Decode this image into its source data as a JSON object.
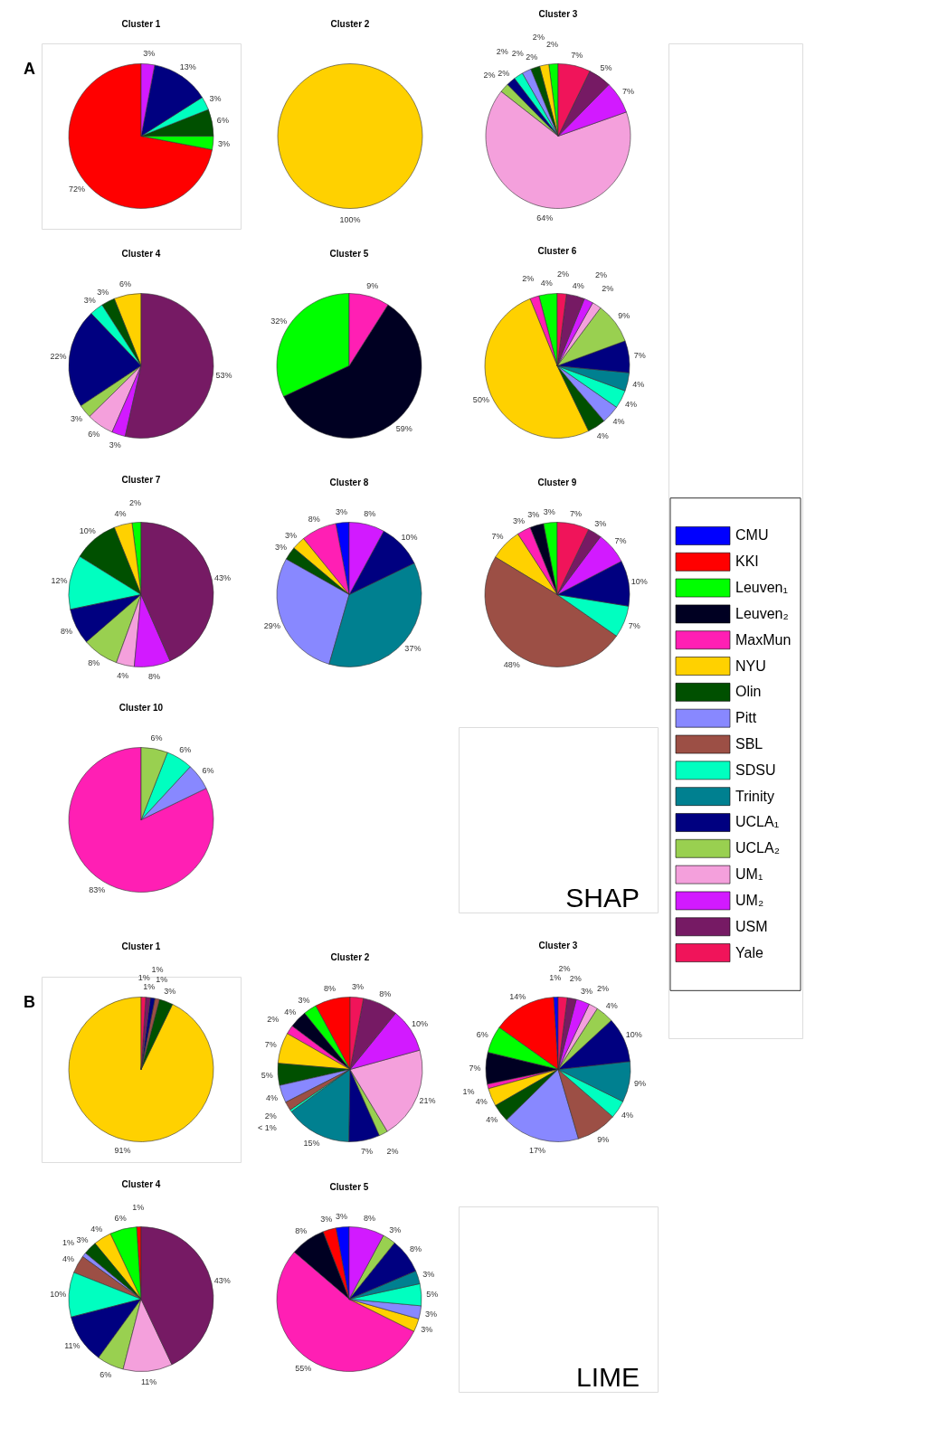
{
  "chart_data": [
    {
      "type": "pie",
      "title": "Cluster 1",
      "annotations": [
        "A",
        "SHAP"
      ],
      "categories": [
        null,
        null,
        null,
        null,
        null,
        null,
        null,
        null,
        null,
        null,
        null,
        null,
        null,
        null,
        null,
        null,
        null
      ],
      "colors": [
        "#0000ff",
        "#ff0000",
        "#00ff00",
        "#000022",
        "#ff1fb4",
        "#ffd100",
        "#005000",
        "#8888ff",
        "#9c4f45",
        "#00ffc0",
        "#008090",
        "#000080",
        "#99d050",
        "#f4a0dc",
        "#d21aff",
        "#761a64",
        "#f0145a"
      ],
      "values": [
        null,
        72,
        3,
        null,
        null,
        null,
        6,
        null,
        null,
        3,
        null,
        13,
        null,
        null,
        3,
        null,
        null
      ],
      "value_labels": [
        null,
        "72%",
        "3%",
        null,
        null,
        null,
        "6%",
        null,
        null,
        "3%",
        null,
        "13%",
        null,
        null,
        "3%",
        null,
        null
      ]
    },
    {
      "type": "pie",
      "title": "Cluster 2",
      "categories": [
        null,
        null,
        null,
        null,
        null,
        null,
        null,
        null,
        null,
        null,
        null,
        null,
        null,
        null,
        null,
        null,
        null
      ],
      "colors": [
        "#0000ff",
        "#ff0000",
        "#00ff00",
        "#000022",
        "#ff1fb4",
        "#ffd100",
        "#005000",
        "#8888ff",
        "#9c4f45",
        "#00ffc0",
        "#008090",
        "#000080",
        "#99d050",
        "#f4a0dc",
        "#d21aff",
        "#761a64",
        "#f0145a"
      ],
      "values": [
        null,
        null,
        null,
        null,
        null,
        100,
        null,
        null,
        null,
        null,
        null,
        null,
        null,
        null,
        null,
        null,
        null
      ],
      "value_labels": [
        null,
        null,
        null,
        null,
        null,
        "100%",
        null,
        null,
        null,
        null,
        null,
        null,
        null,
        null,
        null,
        null,
        null
      ]
    },
    {
      "type": "pie",
      "title": "Cluster 3",
      "categories": [
        null,
        null,
        null,
        null,
        null,
        null,
        null,
        null,
        null,
        null,
        null,
        null,
        null,
        null,
        null,
        null,
        null
      ],
      "colors": [
        "#0000ff",
        "#ff0000",
        "#00ff00",
        "#000022",
        "#ff1fb4",
        "#ffd100",
        "#005000",
        "#8888ff",
        "#9c4f45",
        "#00ffc0",
        "#008090",
        "#000080",
        "#99d050",
        "#f4a0dc",
        "#d21aff",
        "#761a64",
        "#f0145a"
      ],
      "values": [
        null,
        null,
        2,
        null,
        null,
        2,
        2,
        2,
        null,
        2,
        null,
        2,
        2,
        64,
        7,
        5,
        7
      ],
      "value_labels": [
        null,
        null,
        "2%",
        null,
        null,
        "2%",
        "2%",
        "2%",
        null,
        "2%",
        null,
        "2%",
        "2%",
        "64%",
        "7%",
        "5%",
        "7%"
      ]
    },
    {
      "type": "pie",
      "title": "Cluster 4",
      "categories": [
        null,
        null,
        null,
        null,
        null,
        null,
        null,
        null,
        null,
        null,
        null,
        null,
        null,
        null,
        null,
        null,
        null
      ],
      "colors": [
        "#0000ff",
        "#ff0000",
        "#00ff00",
        "#000022",
        "#ff1fb4",
        "#ffd100",
        "#005000",
        "#8888ff",
        "#9c4f45",
        "#00ffc0",
        "#008090",
        "#000080",
        "#99d050",
        "#f4a0dc",
        "#d21aff",
        "#761a64",
        "#f0145a"
      ],
      "values": [
        null,
        null,
        null,
        null,
        null,
        6,
        3,
        null,
        null,
        3,
        null,
        22,
        3,
        6,
        3,
        53,
        null
      ],
      "value_labels": [
        null,
        null,
        null,
        null,
        null,
        "6%",
        "3%",
        null,
        null,
        "3%",
        null,
        "22%",
        "3%",
        "6%",
        "3%",
        "53%",
        null
      ]
    },
    {
      "type": "pie",
      "title": "Cluster 5",
      "categories": [
        null,
        null,
        null,
        null,
        null,
        null,
        null,
        null,
        null,
        null,
        null,
        null,
        null,
        null,
        null,
        null,
        null
      ],
      "colors": [
        "#0000ff",
        "#ff0000",
        "#00ff00",
        "#000022",
        "#ff1fb4",
        "#ffd100",
        "#005000",
        "#8888ff",
        "#9c4f45",
        "#00ffc0",
        "#008090",
        "#000080",
        "#99d050",
        "#f4a0dc",
        "#d21aff",
        "#761a64",
        "#f0145a"
      ],
      "values": [
        null,
        null,
        32,
        59,
        9,
        null,
        null,
        null,
        null,
        null,
        null,
        null,
        null,
        null,
        null,
        null,
        null
      ],
      "value_labels": [
        null,
        null,
        "32%",
        "59%",
        "9%",
        null,
        null,
        null,
        null,
        null,
        null,
        null,
        null,
        null,
        null,
        null,
        null
      ]
    },
    {
      "type": "pie",
      "title": "Cluster 6",
      "categories": [
        null,
        null,
        null,
        null,
        null,
        null,
        null,
        null,
        null,
        null,
        null,
        null,
        null,
        null,
        null,
        null,
        null
      ],
      "colors": [
        "#0000ff",
        "#ff0000",
        "#00ff00",
        "#000022",
        "#ff1fb4",
        "#ffd100",
        "#005000",
        "#8888ff",
        "#9c4f45",
        "#00ffc0",
        "#008090",
        "#000080",
        "#99d050",
        "#f4a0dc",
        "#d21aff",
        "#761a64",
        "#f0145a"
      ],
      "values": [
        null,
        null,
        4,
        null,
        2,
        50,
        4,
        4,
        null,
        4,
        4,
        7,
        9,
        2,
        2,
        4,
        2
      ],
      "value_labels": [
        null,
        null,
        "4%",
        null,
        "2%",
        "50%",
        "4%",
        "4%",
        null,
        "4%",
        "4%",
        "7%",
        "9%",
        "2%",
        "2%",
        "4%",
        "2%"
      ]
    },
    {
      "type": "pie",
      "title": "Cluster 7",
      "categories": [
        null,
        null,
        null,
        null,
        null,
        null,
        null,
        null,
        null,
        null,
        null,
        null,
        null,
        null,
        null,
        null,
        null
      ],
      "colors": [
        "#0000ff",
        "#ff0000",
        "#00ff00",
        "#000022",
        "#ff1fb4",
        "#ffd100",
        "#005000",
        "#8888ff",
        "#9c4f45",
        "#00ffc0",
        "#008090",
        "#000080",
        "#99d050",
        "#f4a0dc",
        "#d21aff",
        "#761a64",
        "#f0145a"
      ],
      "values": [
        null,
        null,
        2,
        null,
        null,
        4,
        10,
        null,
        null,
        12,
        null,
        8,
        8,
        4,
        8,
        43,
        null
      ],
      "value_labels": [
        null,
        null,
        "2%",
        null,
        null,
        "4%",
        "10%",
        null,
        null,
        "12%",
        null,
        "8%",
        "8%",
        "4%",
        "8%",
        "43%",
        null
      ]
    },
    {
      "type": "pie",
      "title": "Cluster 8",
      "categories": [
        null,
        null,
        null,
        null,
        null,
        null,
        null,
        null,
        null,
        null,
        null,
        null,
        null,
        null,
        null,
        null,
        null
      ],
      "colors": [
        "#0000ff",
        "#ff0000",
        "#00ff00",
        "#000022",
        "#ff1fb4",
        "#ffd100",
        "#005000",
        "#8888ff",
        "#9c4f45",
        "#00ffc0",
        "#008090",
        "#000080",
        "#99d050",
        "#f4a0dc",
        "#d21aff",
        "#761a64",
        "#f0145a"
      ],
      "values": [
        3,
        null,
        null,
        null,
        8,
        3,
        3,
        29,
        null,
        null,
        37,
        10,
        null,
        null,
        8,
        null,
        null
      ],
      "value_labels": [
        "3%",
        null,
        null,
        null,
        "8%",
        "3%",
        "3%",
        "29%",
        null,
        null,
        "37%",
        "10%",
        null,
        null,
        "8%",
        null,
        null
      ]
    },
    {
      "type": "pie",
      "title": "Cluster 9",
      "categories": [
        null,
        null,
        null,
        null,
        null,
        null,
        null,
        null,
        null,
        null,
        null,
        null,
        null,
        null,
        null,
        null,
        null
      ],
      "colors": [
        "#0000ff",
        "#ff0000",
        "#00ff00",
        "#000022",
        "#ff1fb4",
        "#ffd100",
        "#005000",
        "#8888ff",
        "#9c4f45",
        "#00ffc0",
        "#008090",
        "#000080",
        "#99d050",
        "#f4a0dc",
        "#d21aff",
        "#761a64",
        "#f0145a"
      ],
      "values": [
        null,
        null,
        3,
        3,
        3,
        7,
        null,
        null,
        48,
        7,
        null,
        10,
        null,
        null,
        7,
        3,
        7
      ],
      "value_labels": [
        null,
        null,
        "3%",
        "3%",
        "3%",
        "7%",
        null,
        null,
        "48%",
        "7%",
        null,
        "10%",
        null,
        null,
        "7%",
        "3%",
        "7%"
      ]
    },
    {
      "type": "pie",
      "title": "Cluster 10",
      "categories": [
        null,
        null,
        null,
        null,
        null,
        null,
        null,
        null,
        null,
        null,
        null,
        null,
        null,
        null,
        null,
        null,
        null
      ],
      "colors": [
        "#0000ff",
        "#ff0000",
        "#00ff00",
        "#000022",
        "#ff1fb4",
        "#ffd100",
        "#005000",
        "#8888ff",
        "#9c4f45",
        "#00ffc0",
        "#008090",
        "#000080",
        "#99d050",
        "#f4a0dc",
        "#d21aff",
        "#761a64",
        "#f0145a"
      ],
      "values": [
        null,
        null,
        null,
        null,
        83,
        null,
        null,
        6,
        null,
        6,
        null,
        null,
        6,
        null,
        null,
        null,
        null
      ],
      "value_labels": [
        null,
        null,
        null,
        null,
        "83%",
        null,
        null,
        "6%",
        null,
        "6%",
        null,
        null,
        "6%",
        null,
        null,
        null,
        null
      ]
    },
    {
      "type": "pie",
      "title": "Cluster 1",
      "annotations": [
        "B",
        "LIME"
      ],
      "categories": [
        null,
        null,
        null,
        null,
        null,
        null,
        null,
        null,
        null,
        null,
        null,
        null,
        null,
        null,
        null,
        null,
        null
      ],
      "colors": [
        "#0000ff",
        "#ff0000",
        "#00ff00",
        "#000022",
        "#ff1fb4",
        "#ffd100",
        "#005000",
        "#8888ff",
        "#9c4f45",
        "#00ffc0",
        "#008090",
        "#000080",
        "#99d050",
        "#f4a0dc",
        "#d21aff",
        "#761a64",
        "#f0145a"
      ],
      "values": [
        null,
        null,
        null,
        null,
        null,
        91,
        3,
        null,
        1,
        null,
        null,
        1,
        null,
        null,
        null,
        1,
        1
      ],
      "value_labels": [
        null,
        null,
        null,
        null,
        null,
        "91%",
        "3%",
        null,
        "1%",
        null,
        null,
        "1%",
        null,
        null,
        null,
        "1%",
        "1%"
      ]
    },
    {
      "type": "pie",
      "title": "Cluster 2",
      "categories": [
        null,
        null,
        null,
        null,
        null,
        null,
        null,
        null,
        null,
        null,
        null,
        null,
        null,
        null,
        null,
        null,
        null
      ],
      "colors": [
        "#0000ff",
        "#ff0000",
        "#00ff00",
        "#000022",
        "#ff1fb4",
        "#ffd100",
        "#005000",
        "#8888ff",
        "#9c4f45",
        "#00ffc0",
        "#008090",
        "#000080",
        "#99d050",
        "#f4a0dc",
        "#d21aff",
        "#761a64",
        "#f0145a"
      ],
      "values": [
        null,
        8,
        3,
        4,
        2,
        7,
        5,
        4,
        2,
        0.5,
        15,
        7,
        2,
        21,
        10,
        8,
        3
      ],
      "value_labels": [
        null,
        "8%",
        "3%",
        "4%",
        "2%",
        "7%",
        "5%",
        "4%",
        "2%",
        "< 1%",
        "15%",
        "7%",
        "2%",
        "21%",
        "10%",
        "8%",
        "3%"
      ]
    },
    {
      "type": "pie",
      "title": "Cluster 3",
      "categories": [
        null,
        null,
        null,
        null,
        null,
        null,
        null,
        null,
        null,
        null,
        null,
        null,
        null,
        null,
        null,
        null,
        null
      ],
      "colors": [
        "#0000ff",
        "#ff0000",
        "#00ff00",
        "#000022",
        "#ff1fb4",
        "#ffd100",
        "#005000",
        "#8888ff",
        "#9c4f45",
        "#00ffc0",
        "#008090",
        "#000080",
        "#99d050",
        "#f4a0dc",
        "#d21aff",
        "#761a64",
        "#f0145a"
      ],
      "values": [
        1,
        14,
        6,
        7,
        1,
        4,
        4,
        17,
        9,
        4,
        9,
        10,
        4,
        2,
        3,
        2,
        2
      ],
      "value_labels": [
        "1%",
        "14%",
        "6%",
        "7%",
        "1%",
        "4%",
        "4%",
        "17%",
        "9%",
        "4%",
        "9%",
        "10%",
        "4%",
        "2%",
        "3%",
        "2%",
        "2%"
      ]
    },
    {
      "type": "pie",
      "title": "Cluster 4",
      "categories": [
        null,
        null,
        null,
        null,
        null,
        null,
        null,
        null,
        null,
        null,
        null,
        null,
        null,
        null,
        null,
        null,
        null
      ],
      "colors": [
        "#0000ff",
        "#ff0000",
        "#00ff00",
        "#000022",
        "#ff1fb4",
        "#ffd100",
        "#005000",
        "#8888ff",
        "#9c4f45",
        "#00ffc0",
        "#008090",
        "#000080",
        "#99d050",
        "#f4a0dc",
        "#d21aff",
        "#761a64",
        "#f0145a"
      ],
      "values": [
        null,
        1,
        6,
        null,
        null,
        4,
        3,
        1,
        4,
        10,
        null,
        11,
        6,
        11,
        null,
        43,
        null
      ],
      "value_labels": [
        null,
        "1%",
        "6%",
        null,
        null,
        "4%",
        "3%",
        "1%",
        "4%",
        "10%",
        null,
        "11%",
        "6%",
        "11%",
        null,
        "43%",
        null
      ]
    },
    {
      "type": "pie",
      "title": "Cluster 5",
      "categories": [
        null,
        null,
        null,
        null,
        null,
        null,
        null,
        null,
        null,
        null,
        null,
        null,
        null,
        null,
        null,
        null,
        null
      ],
      "colors": [
        "#0000ff",
        "#ff0000",
        "#00ff00",
        "#000022",
        "#ff1fb4",
        "#ffd100",
        "#005000",
        "#8888ff",
        "#9c4f45",
        "#00ffc0",
        "#008090",
        "#000080",
        "#99d050",
        "#f4a0dc",
        "#d21aff",
        "#761a64",
        "#f0145a"
      ],
      "values": [
        3,
        3,
        null,
        8,
        55,
        3,
        null,
        3,
        null,
        5,
        3,
        8,
        3,
        null,
        8,
        null,
        null
      ],
      "value_labels": [
        "3%",
        "3%",
        null,
        "8%",
        "55%",
        "3%",
        null,
        "3%",
        null,
        "5%",
        "3%",
        "8%",
        "3%",
        null,
        "8%",
        null,
        null
      ]
    },
    {
      "type": "other",
      "categories": [
        "CMU",
        "KKI",
        "Leuven₁",
        "Leuven₂",
        "MaxMun",
        "NYU",
        "Olin",
        "Pitt",
        "SBL",
        "SDSU",
        "Trinity",
        "UCLA₁",
        "UCLA₂",
        "UM₁",
        "UM₂",
        "USM",
        "Yale"
      ],
      "colors": [
        "#0000ff",
        "#ff0000",
        "#00ff00",
        "#000022",
        "#ff1fb4",
        "#ffd100",
        "#005000",
        "#8888ff",
        "#9c4f45",
        "#00ffc0",
        "#008090",
        "#000080",
        "#99d050",
        "#f4a0dc",
        "#d21aff",
        "#761a64",
        "#f0145a"
      ]
    }
  ]
}
